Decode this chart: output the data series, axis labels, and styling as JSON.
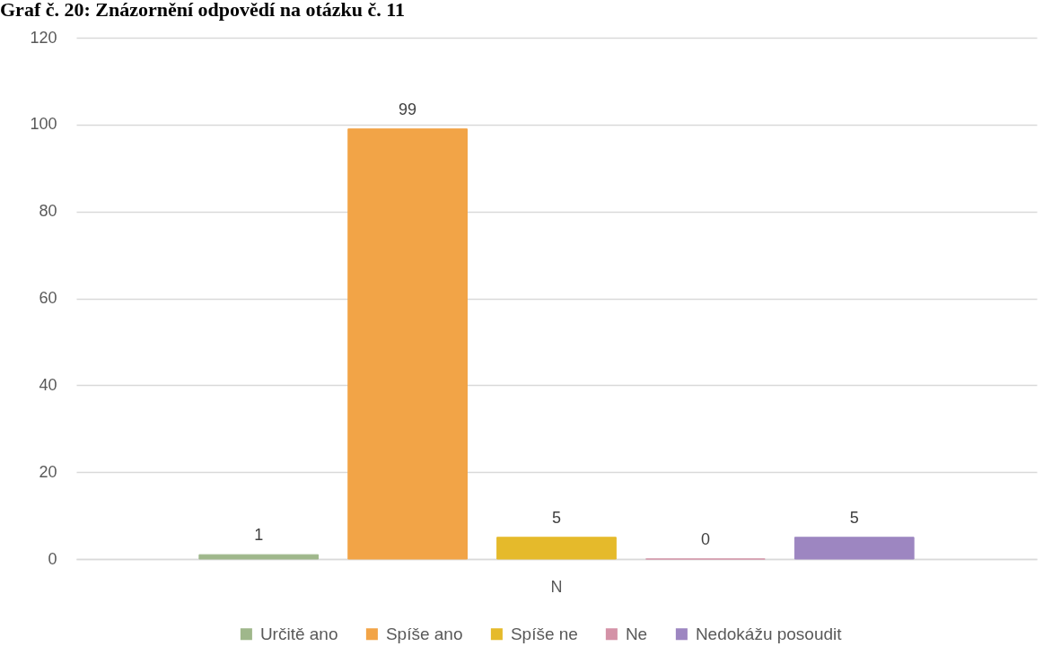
{
  "chart_data": {
    "type": "bar",
    "title": "Graf č. 20: Znázornění odpovědí na otázku č. 11",
    "categories": [
      "N"
    ],
    "series": [
      {
        "name": "Určitě ano",
        "color": "#9fb78b",
        "values": [
          1
        ]
      },
      {
        "name": "Spíše ano",
        "color": "#f2a447",
        "values": [
          99
        ]
      },
      {
        "name": "Spíše ne",
        "color": "#e5ba2b",
        "values": [
          5
        ]
      },
      {
        "name": "Ne",
        "color": "#d492a7",
        "values": [
          0
        ]
      },
      {
        "name": "Nedokážu posoudit",
        "color": "#9d86c1",
        "values": [
          5
        ]
      }
    ],
    "ylim": [
      0,
      120
    ],
    "yticks": [
      0,
      20,
      40,
      60,
      80,
      100,
      120
    ],
    "grid": "y",
    "legend": "bottom",
    "data_labels": true
  }
}
